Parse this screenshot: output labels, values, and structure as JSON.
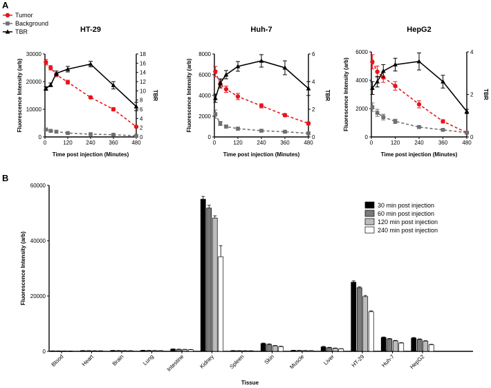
{
  "panel_labels": [
    "A",
    "B"
  ],
  "colors": {
    "tumor": "#e8141c",
    "background": "#707070",
    "tbr": "#000000"
  },
  "legend_a": [
    {
      "label": "Tumor",
      "key": "tumor"
    },
    {
      "label": "Background",
      "key": "background"
    },
    {
      "label": "TBR",
      "key": "tbr"
    }
  ],
  "legend_b": [
    {
      "label": "30 min post injection",
      "color": "#000000"
    },
    {
      "label": "60 min post injection",
      "color": "#7a7a7a"
    },
    {
      "label": "120 min post injection",
      "color": "#bdbdbd"
    },
    {
      "label": "240 min post injection",
      "color": "#ffffff"
    }
  ],
  "chart_data": [
    {
      "type": "line",
      "title": "HT-29",
      "xlabel": "Time post injection (Minutes)",
      "ylabel": "Fluorescence Intensity (arb)",
      "y2label": "TBR",
      "x_ticks": [
        0,
        120,
        240,
        360,
        480
      ],
      "xlim": [
        0,
        480
      ],
      "ylim": [
        0,
        30000
      ],
      "y_ticks": [
        0,
        10000,
        20000,
        30000
      ],
      "y2lim": [
        0,
        18
      ],
      "y2_ticks": [
        0,
        2,
        4,
        6,
        8,
        10,
        12,
        14,
        16,
        18
      ],
      "series": [
        {
          "name": "Tumor",
          "key": "tumor",
          "axis": "left",
          "dashed": true,
          "marker": "circle",
          "x": [
            5,
            30,
            60,
            120,
            240,
            360,
            480
          ],
          "values": [
            27000,
            25000,
            22500,
            19800,
            14300,
            10000,
            3700
          ],
          "err": [
            1000,
            800,
            700,
            700,
            400,
            600,
            300
          ]
        },
        {
          "name": "Background",
          "key": "background",
          "axis": "left",
          "dashed": true,
          "marker": "square",
          "x": [
            5,
            30,
            60,
            120,
            240,
            360,
            480
          ],
          "values": [
            2700,
            2200,
            1900,
            1400,
            1000,
            800,
            400
          ],
          "err": [
            400,
            300,
            300,
            200,
            200,
            150,
            100
          ]
        },
        {
          "name": "TBR",
          "key": "tbr",
          "axis": "right",
          "dashed": false,
          "marker": "triangle",
          "x": [
            5,
            30,
            60,
            120,
            240,
            360,
            480
          ],
          "values": [
            10.5,
            11.3,
            13.8,
            14.7,
            15.8,
            11.2,
            6.6
          ],
          "err": [
            0.4,
            0.4,
            0.5,
            0.6,
            0.6,
            0.8,
            0.9
          ]
        }
      ]
    },
    {
      "type": "line",
      "title": "Huh-7",
      "xlabel": "Time post injection (Minutes)",
      "ylabel": "Fluorescence Intensity (arb)",
      "y2label": "TBR",
      "x_ticks": [
        0,
        120,
        240,
        360,
        480
      ],
      "xlim": [
        0,
        480
      ],
      "ylim": [
        0,
        8000
      ],
      "y_ticks": [
        0,
        2000,
        4000,
        6000,
        8000
      ],
      "y2lim": [
        0,
        6
      ],
      "y2_ticks": [
        0,
        2,
        4,
        6
      ],
      "series": [
        {
          "name": "Tumor",
          "key": "tumor",
          "axis": "left",
          "dashed": true,
          "marker": "circle",
          "x": [
            5,
            30,
            60,
            120,
            240,
            360,
            480
          ],
          "values": [
            6300,
            5100,
            4600,
            3900,
            3000,
            2100,
            1300
          ],
          "err": [
            500,
            400,
            300,
            300,
            200,
            150,
            150
          ]
        },
        {
          "name": "Background",
          "key": "background",
          "axis": "left",
          "dashed": true,
          "marker": "square",
          "x": [
            5,
            30,
            60,
            120,
            240,
            360,
            480
          ],
          "values": [
            2200,
            1300,
            1000,
            800,
            600,
            500,
            350
          ],
          "err": [
            400,
            200,
            150,
            150,
            100,
            100,
            80
          ]
        },
        {
          "name": "TBR",
          "key": "tbr",
          "axis": "right",
          "dashed": false,
          "marker": "triangle",
          "x": [
            5,
            30,
            60,
            120,
            240,
            360,
            480
          ],
          "values": [
            2.8,
            3.9,
            4.5,
            5.1,
            5.5,
            5.0,
            3.5
          ],
          "err": [
            0.3,
            0.3,
            0.3,
            0.35,
            0.45,
            0.5,
            0.5
          ]
        }
      ]
    },
    {
      "type": "line",
      "title": "HepG2",
      "xlabel": "Time post injection (Minutes)",
      "ylabel": "Fluorescence Intensity (arb)",
      "y2label": "TBR",
      "x_ticks": [
        0,
        120,
        240,
        360,
        480
      ],
      "xlim": [
        0,
        480
      ],
      "ylim": [
        0,
        6000
      ],
      "y_ticks": [
        0,
        2000,
        4000,
        6000
      ],
      "y2lim": [
        0,
        4
      ],
      "y2_ticks": [
        0,
        2,
        4
      ],
      "series": [
        {
          "name": "Tumor",
          "key": "tumor",
          "axis": "left",
          "dashed": true,
          "marker": "circle",
          "x": [
            5,
            30,
            60,
            120,
            240,
            360,
            480
          ],
          "values": [
            5300,
            4600,
            4200,
            3600,
            2300,
            1100,
            300
          ],
          "err": [
            500,
            400,
            350,
            300,
            250,
            120,
            80
          ]
        },
        {
          "name": "Background",
          "key": "background",
          "axis": "left",
          "dashed": true,
          "marker": "square",
          "x": [
            5,
            30,
            60,
            120,
            240,
            360,
            480
          ],
          "values": [
            2100,
            1700,
            1400,
            1100,
            700,
            500,
            300
          ],
          "err": [
            300,
            250,
            200,
            150,
            100,
            80,
            60
          ]
        },
        {
          "name": "TBR",
          "key": "tbr",
          "axis": "right",
          "dashed": false,
          "marker": "triangle",
          "x": [
            5,
            30,
            60,
            120,
            240,
            360,
            480
          ],
          "values": [
            2.3,
            2.6,
            3.1,
            3.4,
            3.55,
            2.6,
            1.2
          ],
          "err": [
            0.3,
            0.25,
            0.3,
            0.3,
            0.4,
            0.3,
            0.1
          ]
        }
      ]
    },
    {
      "type": "bar",
      "title": "",
      "xlabel": "Tissue",
      "ylabel": "Fluorescence Intensity (arb)",
      "ylim": [
        0,
        60000
      ],
      "y_ticks": [
        0,
        20000,
        40000,
        60000
      ],
      "categories": [
        "Blood",
        "Heart",
        "Brain",
        "Lung",
        "Intestine",
        "Kidney",
        "Spleen",
        "Skin",
        "Muscle",
        "Liver",
        "HT-29",
        "Huh-7",
        "HepG2"
      ],
      "series": [
        {
          "name": "30 min post injection",
          "values": [
            150,
            250,
            300,
            350,
            800,
            55000,
            250,
            2800,
            350,
            1600,
            25000,
            5000,
            4800
          ],
          "err": [
            50,
            50,
            50,
            50,
            100,
            1000,
            50,
            200,
            50,
            200,
            500,
            200,
            200
          ]
        },
        {
          "name": "60 min post injection",
          "values": [
            130,
            230,
            280,
            320,
            700,
            51800,
            230,
            2500,
            320,
            1300,
            23000,
            4500,
            4300
          ],
          "err": [
            50,
            50,
            50,
            50,
            100,
            1000,
            50,
            200,
            50,
            150,
            300,
            150,
            200
          ]
        },
        {
          "name": "120 min post injection",
          "values": [
            120,
            200,
            250,
            290,
            650,
            48200,
            210,
            2000,
            290,
            1100,
            19800,
            3800,
            3700
          ],
          "err": [
            40,
            40,
            40,
            40,
            80,
            800,
            40,
            150,
            40,
            100,
            400,
            150,
            150
          ]
        },
        {
          "name": "240 min post injection",
          "values": [
            100,
            180,
            220,
            260,
            600,
            34200,
            190,
            1700,
            260,
            900,
            14300,
            3000,
            2400
          ],
          "err": [
            40,
            40,
            40,
            40,
            80,
            4000,
            40,
            150,
            40,
            100,
            300,
            150,
            150
          ]
        }
      ]
    }
  ]
}
